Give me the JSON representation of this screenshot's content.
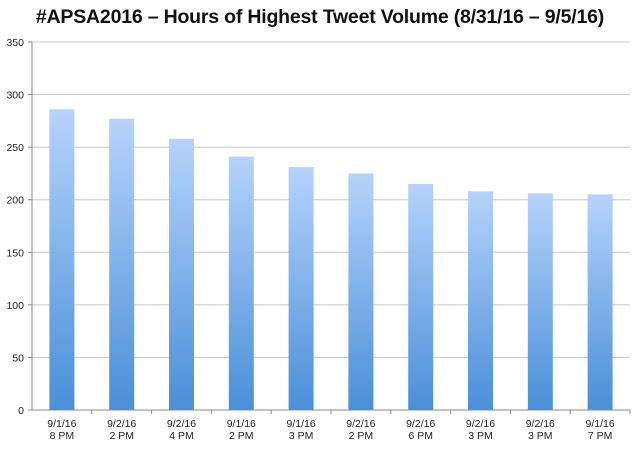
{
  "chart_data": {
    "type": "bar",
    "title": "#APSA2016 – Hours of Highest Tweet Volume (8/31/16 – 9/5/16)",
    "categories": [
      [
        "9/1/16",
        "8 PM"
      ],
      [
        "9/2/16",
        "2 PM"
      ],
      [
        "9/2/16",
        "4 PM"
      ],
      [
        "9/1/16",
        "2 PM"
      ],
      [
        "9/1/16",
        "3 PM"
      ],
      [
        "9/2/16",
        "2 PM"
      ],
      [
        "9/2/16",
        "6 PM"
      ],
      [
        "9/2/16",
        "3 PM"
      ],
      [
        "9/2/16",
        "3 PM"
      ],
      [
        "9/1/16",
        "7 PM"
      ]
    ],
    "values": [
      286,
      277,
      258,
      241,
      231,
      225,
      215,
      208,
      206,
      205
    ],
    "ylim": [
      0,
      350
    ],
    "yticks": [
      0,
      50,
      100,
      150,
      200,
      250,
      300,
      350
    ],
    "xlabel": "",
    "ylabel": "",
    "grid": true,
    "legend": "none",
    "colors": {
      "bar_top": "#b5d3fb",
      "bar_bottom": "#4a8fd8",
      "grid": "#c8c8c8",
      "axis": "#8a8a8a"
    }
  }
}
